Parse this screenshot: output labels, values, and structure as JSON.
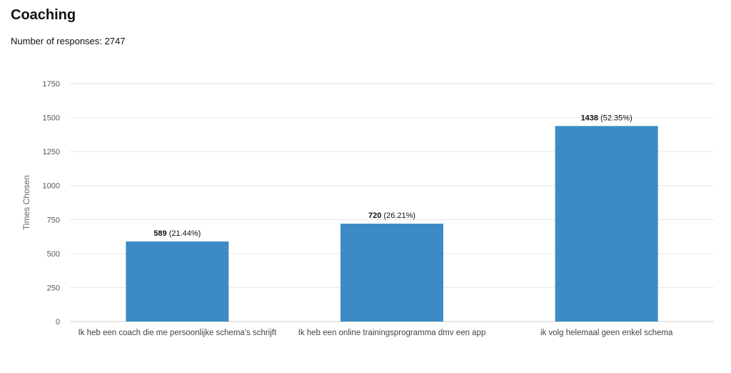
{
  "title": "Coaching",
  "subtitle": "Number of responses: 2747",
  "chart_data": {
    "type": "bar",
    "title": "Coaching",
    "ylabel": "Times Chosen",
    "xlabel": "",
    "ylim": [
      0,
      1750
    ],
    "yticks": [
      0,
      250,
      500,
      750,
      1000,
      1250,
      1500,
      1750
    ],
    "grid": true,
    "categories": [
      "Ik heb een coach die me persoonlijke schema's schrijft",
      "Ik heb een online trainingsprogramma dmv een app",
      "ik volg helemaal geen enkel schema"
    ],
    "values": [
      589,
      720,
      1438
    ],
    "percent_labels": [
      "(21.44%)",
      "(26.21%)",
      "(52.35%)"
    ],
    "bar_color": "#3d8bc4"
  }
}
